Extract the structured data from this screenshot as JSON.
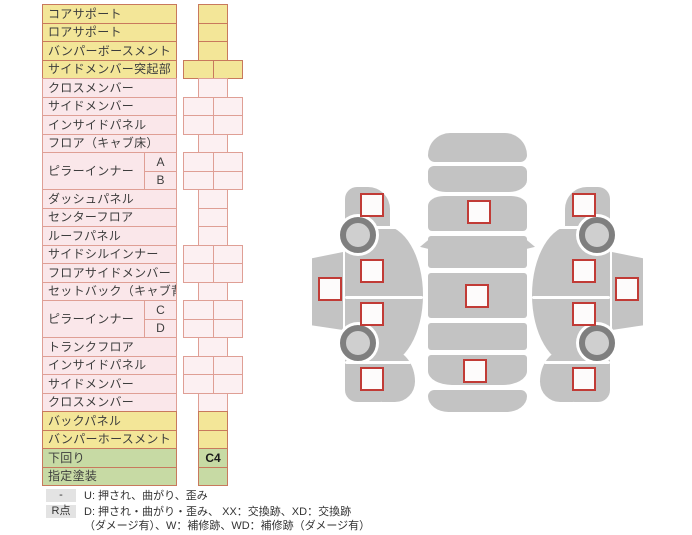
{
  "colors": {
    "yellow": "#f3e698",
    "pink_label": "#fae7ea",
    "pink_cell": "#fcf0f2",
    "green": "#c7daa4",
    "border_warm": "#c8795d",
    "border_pink": "#df9f95",
    "checkbox_border": "#c13b36",
    "car_gray": "#c3c3c3",
    "wheel_dark": "#7f7f7f",
    "wheel_inner": "#cfcfcf",
    "badge_bg": "#e3e3e3"
  },
  "table": {
    "rows": [
      {
        "label": "コアサポート",
        "color": "yellow",
        "cell": "narrow"
      },
      {
        "label": "ロアサポート",
        "color": "yellow",
        "cell": "narrow"
      },
      {
        "label": "バンパーボースメント",
        "color": "yellow",
        "cell": "narrow"
      },
      {
        "label": "サイドメンバー突起部",
        "color": "yellow",
        "cell": "wide"
      },
      {
        "label": "クロスメンバー",
        "color": "pink",
        "cell": "narrow"
      },
      {
        "label": "サイドメンバー",
        "color": "pink",
        "cell": "wide"
      },
      {
        "label": "インサイドパネル",
        "color": "pink",
        "cell": "wide"
      },
      {
        "label": "フロア（キャブ床）",
        "color": "pink",
        "cell": "narrow"
      },
      {
        "label": "ピラーインナー",
        "color": "pink",
        "cell": "wide",
        "subs": [
          "A",
          "B"
        ]
      },
      {
        "label": "ダッシュパネル",
        "color": "pink",
        "cell": "narrow"
      },
      {
        "label": "センターフロア",
        "color": "pink",
        "cell": "narrow"
      },
      {
        "label": "ルーフパネル",
        "color": "pink",
        "cell": "narrow"
      },
      {
        "label": "サイドシルインナー",
        "color": "pink",
        "cell": "wide"
      },
      {
        "label": "フロアサイドメンバー",
        "color": "pink",
        "cell": "wide"
      },
      {
        "label": "セットバック（キャブ背）",
        "color": "pink",
        "cell": "narrow"
      },
      {
        "label": "ピラーインナー",
        "color": "pink",
        "cell": "wide",
        "subs": [
          "C",
          "D"
        ]
      },
      {
        "label": "トランクフロア",
        "color": "pink",
        "cell": "narrow"
      },
      {
        "label": "インサイドパネル",
        "color": "pink",
        "cell": "wide"
      },
      {
        "label": "サイドメンバー",
        "color": "pink",
        "cell": "wide"
      },
      {
        "label": "クロスメンバー",
        "color": "pink",
        "cell": "narrow"
      },
      {
        "label": "バックパネル",
        "color": "yellow",
        "cell": "narrow"
      },
      {
        "label": "バンパーホースメント",
        "color": "yellow",
        "cell": "narrow"
      },
      {
        "label": "下回り",
        "color": "green",
        "cell": "narrow",
        "value": "C4"
      },
      {
        "label": "指定塗装",
        "color": "green",
        "cell": "narrow"
      }
    ]
  },
  "diagram": {
    "checkboxes": [
      "center-windshield",
      "center-roof",
      "center-trunk",
      "left-front-fender",
      "left-front-door",
      "left-rear-door",
      "left-rear-fender",
      "left-outer-sill",
      "right-front-fender",
      "right-front-door",
      "right-rear-door",
      "right-rear-fender",
      "right-outer-sill"
    ]
  },
  "legend": {
    "items": [
      {
        "badge": "-",
        "lines": [
          "U: 押され、曲がり、歪み"
        ]
      },
      {
        "badge": "R点",
        "lines": [
          "D: 押され・曲がり・歪み、 XX：交換跡、XD：交換跡",
          "（ダメージ有）、W：補修跡、WD：補修跡（ダメージ有）"
        ]
      }
    ]
  }
}
